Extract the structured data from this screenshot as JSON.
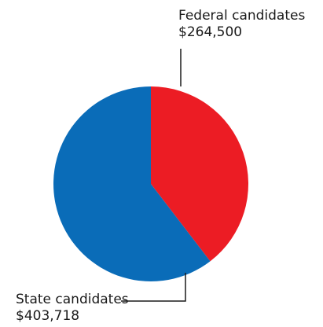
{
  "chart_data": {
    "type": "pie",
    "slices": [
      {
        "name": "Federal candidates",
        "value": 264500,
        "value_label": "$264,500",
        "color": "#ec1c24"
      },
      {
        "name": "State candidates",
        "value": 403718,
        "value_label": "$403,718",
        "color": "#0a6cb8"
      }
    ],
    "legend": "none"
  }
}
